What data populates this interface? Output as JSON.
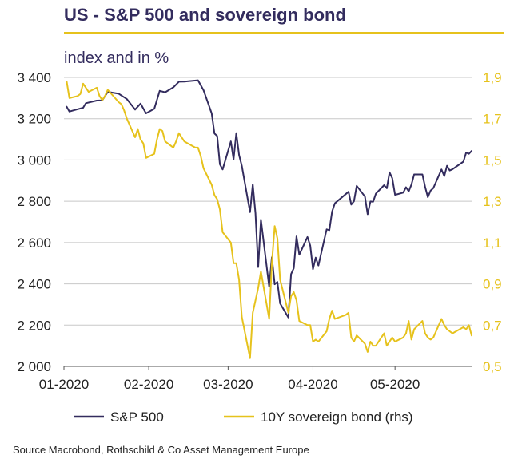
{
  "header": {
    "title": "US - S&P 500 and sovereign bond",
    "subtitle": "index and in %"
  },
  "footer": {
    "source": "Source Macrobond, Rothschild & Co Asset Management Europe"
  },
  "colors": {
    "spx": "#332c5e",
    "bond": "#e6c21c",
    "axis_left": "#222222",
    "axis_right": "#e6c21c",
    "grid": "#c8c8c8",
    "title_rule": "#e6c21c"
  },
  "chart_data": {
    "type": "line",
    "title": "US - S&P 500 and sovereign bond",
    "subtitle": "index and in %",
    "x_type": "date",
    "x_tick_labels": [
      "01-2020",
      "02-2020",
      "03-2020",
      "04-2020",
      "05-2020"
    ],
    "x_ticks": [
      "2020-01-01",
      "2020-02-01",
      "2020-03-01",
      "2020-04-01",
      "2020-05-01"
    ],
    "xlim": [
      "2020-01-01",
      "2020-05-29"
    ],
    "y_left": {
      "ylim": [
        2000,
        3400
      ],
      "ticks": [
        2000,
        2200,
        2400,
        2600,
        2800,
        3000,
        3200,
        3400
      ],
      "tick_labels": [
        "2 000",
        "2 200",
        "2 400",
        "2 600",
        "2 800",
        "3 000",
        "3 200",
        "3 400"
      ]
    },
    "y_right": {
      "ylim": [
        0.5,
        1.9
      ],
      "ticks": [
        0.5,
        0.7,
        0.9,
        1.1,
        1.3,
        1.5,
        1.7,
        1.9
      ],
      "tick_labels": [
        "0,5",
        "0,7",
        "0,9",
        "1,1",
        "1,3",
        "1,5",
        "1,7",
        "1,9"
      ]
    },
    "grid": "horizontal",
    "legend_position": "bottom",
    "series": [
      {
        "name": "S&P 500",
        "axis": "left",
        "points": [
          [
            "2020-01-02",
            3258
          ],
          [
            "2020-01-03",
            3235
          ],
          [
            "2020-01-06",
            3246
          ],
          [
            "2020-01-08",
            3253
          ],
          [
            "2020-01-09",
            3275
          ],
          [
            "2020-01-13",
            3288
          ],
          [
            "2020-01-15",
            3289
          ],
          [
            "2020-01-17",
            3330
          ],
          [
            "2020-01-21",
            3321
          ],
          [
            "2020-01-24",
            3295
          ],
          [
            "2020-01-27",
            3244
          ],
          [
            "2020-01-29",
            3273
          ],
          [
            "2020-01-31",
            3226
          ],
          [
            "2020-02-03",
            3248
          ],
          [
            "2020-02-05",
            3335
          ],
          [
            "2020-02-07",
            3328
          ],
          [
            "2020-02-10",
            3352
          ],
          [
            "2020-02-12",
            3379
          ],
          [
            "2020-02-14",
            3380
          ],
          [
            "2020-02-19",
            3386
          ],
          [
            "2020-02-21",
            3338
          ],
          [
            "2020-02-24",
            3226
          ],
          [
            "2020-02-25",
            3128
          ],
          [
            "2020-02-26",
            3116
          ],
          [
            "2020-02-27",
            2979
          ],
          [
            "2020-02-28",
            2954
          ],
          [
            "2020-03-02",
            3090
          ],
          [
            "2020-03-03",
            3003
          ],
          [
            "2020-03-04",
            3130
          ],
          [
            "2020-03-05",
            3024
          ],
          [
            "2020-03-06",
            2972
          ],
          [
            "2020-03-09",
            2747
          ],
          [
            "2020-03-10",
            2882
          ],
          [
            "2020-03-11",
            2741
          ],
          [
            "2020-03-12",
            2481
          ],
          [
            "2020-03-13",
            2711
          ],
          [
            "2020-03-16",
            2386
          ],
          [
            "2020-03-17",
            2529
          ],
          [
            "2020-03-18",
            2398
          ],
          [
            "2020-03-19",
            2409
          ],
          [
            "2020-03-20",
            2305
          ],
          [
            "2020-03-23",
            2237
          ],
          [
            "2020-03-24",
            2447
          ],
          [
            "2020-03-25",
            2476
          ],
          [
            "2020-03-26",
            2630
          ],
          [
            "2020-03-27",
            2541
          ],
          [
            "2020-03-30",
            2627
          ],
          [
            "2020-03-31",
            2585
          ],
          [
            "2020-04-01",
            2471
          ],
          [
            "2020-04-02",
            2527
          ],
          [
            "2020-04-03",
            2489
          ],
          [
            "2020-04-06",
            2664
          ],
          [
            "2020-04-07",
            2660
          ],
          [
            "2020-04-08",
            2750
          ],
          [
            "2020-04-09",
            2790
          ],
          [
            "2020-04-14",
            2846
          ],
          [
            "2020-04-15",
            2784
          ],
          [
            "2020-04-16",
            2800
          ],
          [
            "2020-04-17",
            2875
          ],
          [
            "2020-04-20",
            2823
          ],
          [
            "2020-04-21",
            2737
          ],
          [
            "2020-04-22",
            2799
          ],
          [
            "2020-04-23",
            2798
          ],
          [
            "2020-04-24",
            2837
          ],
          [
            "2020-04-27",
            2878
          ],
          [
            "2020-04-28",
            2863
          ],
          [
            "2020-04-29",
            2940
          ],
          [
            "2020-04-30",
            2912
          ],
          [
            "2020-05-01",
            2831
          ],
          [
            "2020-05-04",
            2842
          ],
          [
            "2020-05-05",
            2868
          ],
          [
            "2020-05-06",
            2848
          ],
          [
            "2020-05-07",
            2881
          ],
          [
            "2020-05-08",
            2930
          ],
          [
            "2020-05-11",
            2930
          ],
          [
            "2020-05-12",
            2870
          ],
          [
            "2020-05-13",
            2820
          ],
          [
            "2020-05-14",
            2852
          ],
          [
            "2020-05-15",
            2864
          ],
          [
            "2020-05-18",
            2954
          ],
          [
            "2020-05-19",
            2922
          ],
          [
            "2020-05-20",
            2972
          ],
          [
            "2020-05-21",
            2949
          ],
          [
            "2020-05-22",
            2955
          ],
          [
            "2020-05-26",
            2992
          ],
          [
            "2020-05-27",
            3036
          ],
          [
            "2020-05-28",
            3030
          ],
          [
            "2020-05-29",
            3044
          ]
        ]
      },
      {
        "name": "10Y sovereign bond (rhs)",
        "axis": "right",
        "points": [
          [
            "2020-01-02",
            1.88
          ],
          [
            "2020-01-03",
            1.8
          ],
          [
            "2020-01-06",
            1.81
          ],
          [
            "2020-01-07",
            1.82
          ],
          [
            "2020-01-08",
            1.87
          ],
          [
            "2020-01-09",
            1.85
          ],
          [
            "2020-01-10",
            1.83
          ],
          [
            "2020-01-13",
            1.85
          ],
          [
            "2020-01-14",
            1.81
          ],
          [
            "2020-01-15",
            1.79
          ],
          [
            "2020-01-16",
            1.81
          ],
          [
            "2020-01-17",
            1.84
          ],
          [
            "2020-01-21",
            1.78
          ],
          [
            "2020-01-22",
            1.77
          ],
          [
            "2020-01-23",
            1.74
          ],
          [
            "2020-01-24",
            1.7
          ],
          [
            "2020-01-27",
            1.61
          ],
          [
            "2020-01-28",
            1.65
          ],
          [
            "2020-01-29",
            1.6
          ],
          [
            "2020-01-30",
            1.58
          ],
          [
            "2020-01-31",
            1.51
          ],
          [
            "2020-02-03",
            1.53
          ],
          [
            "2020-02-04",
            1.6
          ],
          [
            "2020-02-05",
            1.65
          ],
          [
            "2020-02-06",
            1.64
          ],
          [
            "2020-02-07",
            1.59
          ],
          [
            "2020-02-10",
            1.56
          ],
          [
            "2020-02-11",
            1.59
          ],
          [
            "2020-02-12",
            1.63
          ],
          [
            "2020-02-13",
            1.61
          ],
          [
            "2020-02-14",
            1.59
          ],
          [
            "2020-02-18",
            1.56
          ],
          [
            "2020-02-19",
            1.56
          ],
          [
            "2020-02-20",
            1.52
          ],
          [
            "2020-02-21",
            1.46
          ],
          [
            "2020-02-24",
            1.38
          ],
          [
            "2020-02-25",
            1.33
          ],
          [
            "2020-02-26",
            1.31
          ],
          [
            "2020-02-27",
            1.26
          ],
          [
            "2020-02-28",
            1.15
          ],
          [
            "2020-03-02",
            1.1
          ],
          [
            "2020-03-03",
            1.0
          ],
          [
            "2020-03-04",
            1.0
          ],
          [
            "2020-03-05",
            0.92
          ],
          [
            "2020-03-06",
            0.74
          ],
          [
            "2020-03-09",
            0.54
          ],
          [
            "2020-03-10",
            0.76
          ],
          [
            "2020-03-11",
            0.82
          ],
          [
            "2020-03-12",
            0.88
          ],
          [
            "2020-03-13",
            0.96
          ],
          [
            "2020-03-16",
            0.73
          ],
          [
            "2020-03-17",
            1.0
          ],
          [
            "2020-03-18",
            1.18
          ],
          [
            "2020-03-19",
            1.12
          ],
          [
            "2020-03-20",
            0.92
          ],
          [
            "2020-03-23",
            0.76
          ],
          [
            "2020-03-24",
            0.84
          ],
          [
            "2020-03-25",
            0.86
          ],
          [
            "2020-03-26",
            0.82
          ],
          [
            "2020-03-27",
            0.72
          ],
          [
            "2020-03-30",
            0.7
          ],
          [
            "2020-03-31",
            0.7
          ],
          [
            "2020-04-01",
            0.62
          ],
          [
            "2020-04-02",
            0.63
          ],
          [
            "2020-04-03",
            0.62
          ],
          [
            "2020-04-06",
            0.67
          ],
          [
            "2020-04-07",
            0.73
          ],
          [
            "2020-04-08",
            0.77
          ],
          [
            "2020-04-09",
            0.73
          ],
          [
            "2020-04-13",
            0.75
          ],
          [
            "2020-04-14",
            0.76
          ],
          [
            "2020-04-15",
            0.64
          ],
          [
            "2020-04-16",
            0.62
          ],
          [
            "2020-04-17",
            0.65
          ],
          [
            "2020-04-20",
            0.61
          ],
          [
            "2020-04-21",
            0.57
          ],
          [
            "2020-04-22",
            0.62
          ],
          [
            "2020-04-23",
            0.6
          ],
          [
            "2020-04-24",
            0.6
          ],
          [
            "2020-04-27",
            0.66
          ],
          [
            "2020-04-28",
            0.6
          ],
          [
            "2020-04-29",
            0.62
          ],
          [
            "2020-04-30",
            0.64
          ],
          [
            "2020-05-01",
            0.62
          ],
          [
            "2020-05-04",
            0.64
          ],
          [
            "2020-05-05",
            0.66
          ],
          [
            "2020-05-06",
            0.72
          ],
          [
            "2020-05-07",
            0.63
          ],
          [
            "2020-05-08",
            0.68
          ],
          [
            "2020-05-11",
            0.72
          ],
          [
            "2020-05-12",
            0.66
          ],
          [
            "2020-05-13",
            0.64
          ],
          [
            "2020-05-14",
            0.63
          ],
          [
            "2020-05-15",
            0.64
          ],
          [
            "2020-05-18",
            0.73
          ],
          [
            "2020-05-19",
            0.7
          ],
          [
            "2020-05-20",
            0.68
          ],
          [
            "2020-05-21",
            0.67
          ],
          [
            "2020-05-22",
            0.66
          ],
          [
            "2020-05-26",
            0.69
          ],
          [
            "2020-05-27",
            0.68
          ],
          [
            "2020-05-28",
            0.7
          ],
          [
            "2020-05-29",
            0.65
          ]
        ]
      }
    ]
  }
}
